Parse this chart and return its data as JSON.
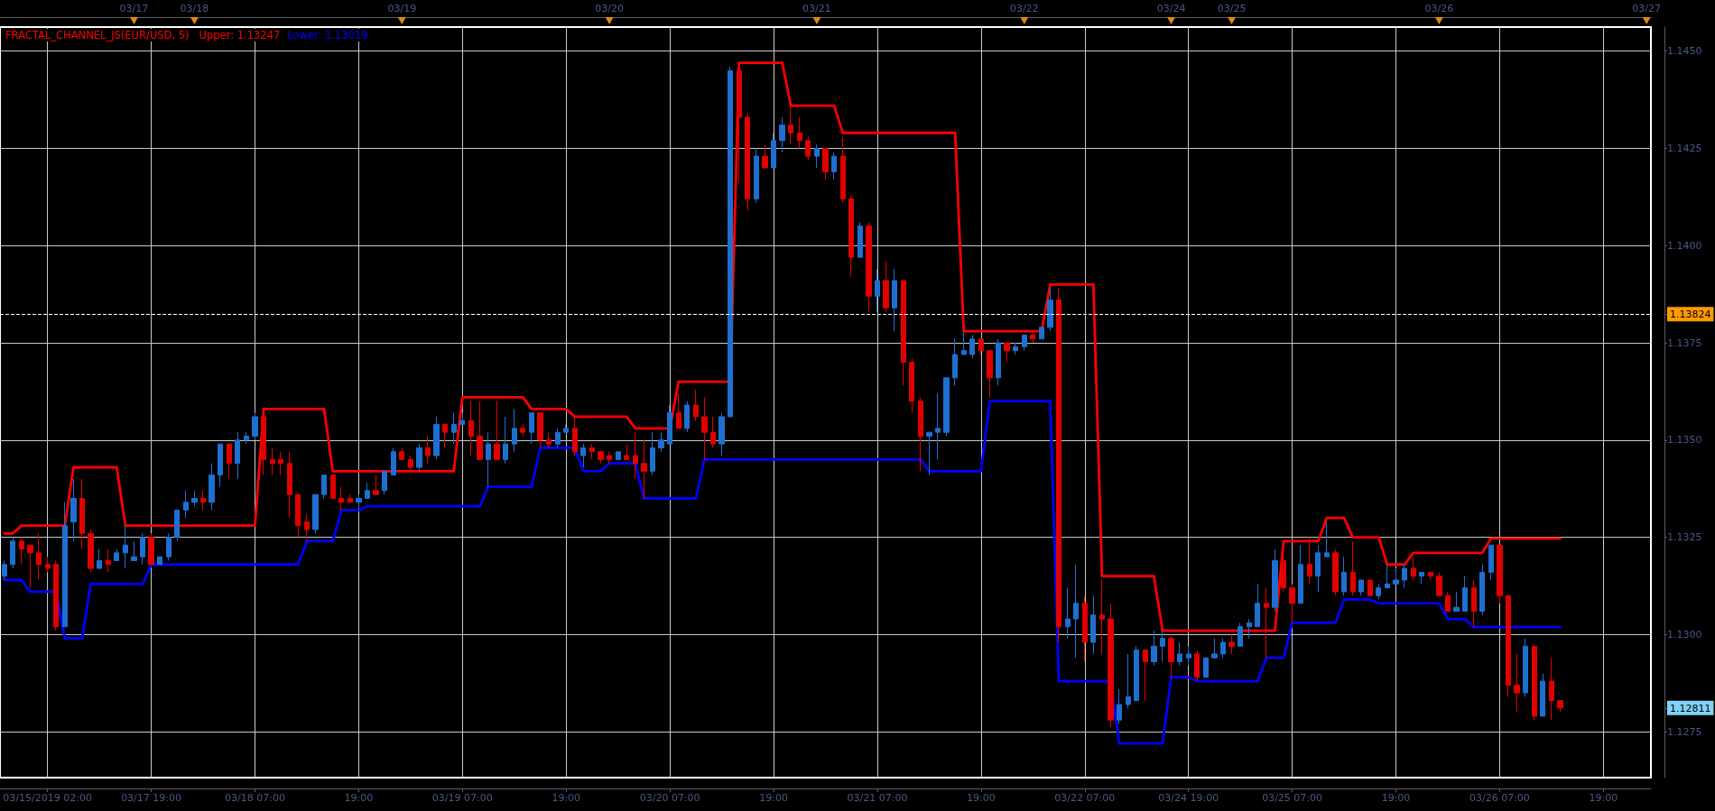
{
  "chart_data": [
    {
      "type": "other",
      "categories": [
        null,
        null,
        null,
        null,
        null,
        null,
        null,
        null,
        null,
        null,
        null,
        null,
        null,
        null,
        null,
        "03/17",
        null,
        null,
        null,
        null,
        null,
        null,
        "03/18",
        null,
        null,
        null,
        null,
        null,
        null,
        null,
        null,
        null,
        null,
        null,
        null,
        null,
        null,
        null,
        null,
        null,
        null,
        null,
        null,
        null,
        null,
        null,
        "03/19",
        null,
        null,
        null,
        null,
        null,
        null,
        null,
        null,
        null,
        null,
        null,
        null,
        null,
        null,
        null,
        null,
        null,
        null,
        null,
        null,
        null,
        null,
        null,
        "03/20",
        null,
        null,
        null,
        null,
        null,
        null,
        null,
        null,
        null,
        null,
        null,
        null,
        null,
        null,
        null,
        null,
        null,
        null,
        null,
        null,
        null,
        null,
        null,
        "03/21",
        null,
        null,
        null,
        null,
        null,
        null,
        null,
        null,
        null,
        null,
        null,
        null,
        null,
        null,
        null,
        null,
        null,
        null,
        null,
        null,
        null,
        null,
        null,
        "03/22",
        null,
        null,
        null,
        null,
        null,
        null,
        null,
        null,
        null,
        null,
        null,
        null,
        null,
        null,
        null,
        null,
        "03/24",
        null,
        null,
        null,
        null,
        null,
        null,
        "03/25",
        null,
        null,
        null,
        null,
        null,
        null,
        null,
        null,
        null,
        null,
        null,
        null,
        null,
        null,
        null,
        null,
        null,
        null,
        null,
        null,
        null,
        null,
        null,
        "03/26",
        null,
        null,
        null,
        null,
        null,
        null,
        null,
        null,
        null,
        null,
        null,
        null,
        null,
        null,
        null,
        null,
        null,
        null,
        null,
        null,
        null,
        null,
        null,
        "03/27"
      ]
    },
    {
      "type": "candlestick",
      "title": "FRACTAL_CHANNEL_JS(EUR/USD, 5)",
      "categories": [
        null,
        null,
        null,
        null,
        null,
        "03/15/2019 02:00",
        null,
        null,
        null,
        null,
        null,
        null,
        null,
        null,
        null,
        null,
        null,
        "03/17 19:00",
        null,
        null,
        null,
        null,
        null,
        null,
        null,
        null,
        null,
        null,
        null,
        "03/18 07:00",
        null,
        null,
        null,
        null,
        null,
        null,
        null,
        null,
        null,
        null,
        null,
        "19:00",
        null,
        null,
        null,
        null,
        null,
        null,
        null,
        null,
        null,
        null,
        null,
        "03/19 07:00",
        null,
        null,
        null,
        null,
        null,
        null,
        null,
        null,
        null,
        null,
        null,
        "19:00",
        null,
        null,
        null,
        null,
        null,
        null,
        null,
        null,
        null,
        null,
        null,
        "03/20 07:00",
        null,
        null,
        null,
        null,
        null,
        null,
        null,
        null,
        null,
        null,
        null,
        "19:00",
        null,
        null,
        null,
        null,
        null,
        null,
        null,
        null,
        null,
        null,
        null,
        "03/21 07:00",
        null,
        null,
        null,
        null,
        null,
        null,
        null,
        null,
        null,
        null,
        null,
        "19:00",
        null,
        null,
        null,
        null,
        null,
        null,
        null,
        null,
        null,
        null,
        null,
        "03/22 07:00",
        null,
        null,
        null,
        null,
        null,
        null,
        null,
        null,
        null,
        null,
        null,
        "03/24 19:00",
        null,
        null,
        null,
        null,
        null,
        null,
        null,
        null,
        null,
        null,
        null,
        "03/25 07:00",
        null,
        null,
        null,
        null,
        null,
        null,
        null,
        null,
        null,
        null,
        null,
        "19:00",
        null,
        null,
        null,
        null,
        null,
        null,
        null,
        null,
        null,
        null,
        null,
        "03/26 07:00",
        null,
        null,
        null,
        null,
        null,
        null,
        null,
        null,
        null,
        null,
        null,
        "19:00",
        null,
        null,
        null,
        null,
        null
      ],
      "ohlc": [
        [
          1.1315,
          1.1319,
          1.1314,
          1.1318
        ],
        [
          1.1318,
          1.1325,
          1.1317,
          1.1324
        ],
        [
          1.1324,
          1.1325,
          1.1318,
          1.1322
        ],
        [
          1.1323,
          1.1323,
          1.1312,
          1.1321
        ],
        [
          1.1321,
          1.1326,
          1.1314,
          1.1318
        ],
        [
          1.1318,
          1.132,
          1.1316,
          1.1317
        ],
        [
          1.1318,
          1.1319,
          1.1301,
          1.1302
        ],
        [
          1.1302,
          1.1334,
          1.1302,
          1.1328
        ],
        [
          1.1329,
          1.134,
          1.1324,
          1.1335
        ],
        [
          1.1335,
          1.134,
          1.1322,
          1.1326
        ],
        [
          1.1326,
          1.1327,
          1.1316,
          1.1317
        ],
        [
          1.1317,
          1.1322,
          1.1317,
          1.1319
        ],
        [
          1.1319,
          1.1322,
          1.1316,
          1.1318
        ],
        [
          1.1319,
          1.1322,
          1.1319,
          1.1321
        ],
        [
          1.1321,
          1.1328,
          1.1317,
          1.1323
        ],
        [
          1.1319,
          1.1324,
          1.1319,
          1.132
        ],
        [
          1.132,
          1.1326,
          1.1318,
          1.1325
        ],
        [
          1.1325,
          1.1326,
          1.1318,
          1.1318
        ],
        [
          1.1318,
          1.132,
          1.1318,
          1.132
        ],
        [
          1.132,
          1.1326,
          1.1319,
          1.1325
        ],
        [
          1.1325,
          1.1332,
          1.1324,
          1.1332
        ],
        [
          1.1332,
          1.1337,
          1.133,
          1.1334
        ],
        [
          1.1334,
          1.1337,
          1.1333,
          1.1335
        ],
        [
          1.1335,
          1.1337,
          1.1332,
          1.1334
        ],
        [
          1.1334,
          1.1344,
          1.1332,
          1.1341
        ],
        [
          1.1341,
          1.1349,
          1.1338,
          1.1349
        ],
        [
          1.1349,
          1.1349,
          1.134,
          1.1344
        ],
        [
          1.1344,
          1.1352,
          1.134,
          1.135
        ],
        [
          1.135,
          1.1352,
          1.1349,
          1.1351
        ],
        [
          1.1351,
          1.1357,
          1.135,
          1.1356
        ],
        [
          1.1356,
          1.1357,
          1.1341,
          1.1345
        ],
        [
          1.1345,
          1.1348,
          1.1341,
          1.1344
        ],
        [
          1.1345,
          1.1347,
          1.1341,
          1.1344
        ],
        [
          1.1344,
          1.1347,
          1.133,
          1.1336
        ],
        [
          1.1336,
          1.1336,
          1.1325,
          1.1328
        ],
        [
          1.1329,
          1.1331,
          1.1324,
          1.1327
        ],
        [
          1.1327,
          1.1336,
          1.1326,
          1.1336
        ],
        [
          1.1336,
          1.1341,
          1.1335,
          1.1341
        ],
        [
          1.1341,
          1.1341,
          1.1335,
          1.1335
        ],
        [
          1.1335,
          1.1338,
          1.1332,
          1.1334
        ],
        [
          1.1335,
          1.1336,
          1.1334,
          1.1334
        ],
        [
          1.1334,
          1.1336,
          1.1332,
          1.1335
        ],
        [
          1.1335,
          1.1339,
          1.1335,
          1.1337
        ],
        [
          1.1337,
          1.1341,
          1.1336,
          1.1336
        ],
        [
          1.1337,
          1.1342,
          1.1336,
          1.1342
        ],
        [
          1.1341,
          1.1348,
          1.1341,
          1.1347
        ],
        [
          1.1347,
          1.1348,
          1.1345,
          1.1345
        ],
        [
          1.1345,
          1.1346,
          1.1342,
          1.1343
        ],
        [
          1.1343,
          1.1349,
          1.1342,
          1.1348
        ],
        [
          1.1348,
          1.1351,
          1.1344,
          1.1346
        ],
        [
          1.1346,
          1.1356,
          1.1345,
          1.1354
        ],
        [
          1.1354,
          1.1354,
          1.1348,
          1.1352
        ],
        [
          1.1352,
          1.1357,
          1.1349,
          1.1354
        ],
        [
          1.1354,
          1.1357,
          1.1354,
          1.1355
        ],
        [
          1.1355,
          1.136,
          1.1346,
          1.1351
        ],
        [
          1.1351,
          1.136,
          1.1345,
          1.1345
        ],
        [
          1.1345,
          1.1352,
          1.1338,
          1.1349
        ],
        [
          1.1349,
          1.136,
          1.1345,
          1.1345
        ],
        [
          1.1345,
          1.1356,
          1.1344,
          1.1349
        ],
        [
          1.1349,
          1.1358,
          1.1347,
          1.1353
        ],
        [
          1.1353,
          1.1354,
          1.1351,
          1.1352
        ],
        [
          1.1352,
          1.1357,
          1.1349,
          1.1357
        ],
        [
          1.1357,
          1.1357,
          1.1348,
          1.135
        ],
        [
          1.135,
          1.1352,
          1.1348,
          1.1349
        ],
        [
          1.1349,
          1.1353,
          1.1348,
          1.1352
        ],
        [
          1.1352,
          1.1354,
          1.1352,
          1.1353
        ],
        [
          1.1353,
          1.1356,
          1.1346,
          1.1347
        ],
        [
          1.1346,
          1.1349,
          1.1343,
          1.1348
        ],
        [
          1.1348,
          1.1349,
          1.1345,
          1.1347
        ],
        [
          1.1347,
          1.1347,
          1.1344,
          1.1345
        ],
        [
          1.1346,
          1.1347,
          1.1344,
          1.1345
        ],
        [
          1.1345,
          1.1347,
          1.1345,
          1.1347
        ],
        [
          1.1346,
          1.1349,
          1.1345,
          1.1345
        ],
        [
          1.1346,
          1.1352,
          1.134,
          1.1344
        ],
        [
          1.1344,
          1.135,
          1.1335,
          1.1342
        ],
        [
          1.1342,
          1.1352,
          1.1341,
          1.1348
        ],
        [
          1.1348,
          1.1352,
          1.1347,
          1.135
        ],
        [
          1.1349,
          1.1359,
          1.1349,
          1.1357
        ],
        [
          1.1357,
          1.1362,
          1.1353,
          1.1353
        ],
        [
          1.1353,
          1.136,
          1.1352,
          1.1359
        ],
        [
          1.1359,
          1.1363,
          1.1355,
          1.1356
        ],
        [
          1.1356,
          1.1361,
          1.1345,
          1.1352
        ],
        [
          1.1352,
          1.1356,
          1.1348,
          1.1349
        ],
        [
          1.1349,
          1.1357,
          1.1346,
          1.1356
        ],
        [
          1.1356,
          1.1446,
          1.1356,
          1.1445
        ],
        [
          1.1445,
          1.1445,
          1.1416,
          1.1433
        ],
        [
          1.1433,
          1.1434,
          1.1409,
          1.1412
        ],
        [
          1.1412,
          1.1425,
          1.1411,
          1.1423
        ],
        [
          1.1423,
          1.1426,
          1.142,
          1.142
        ],
        [
          1.142,
          1.1429,
          1.142,
          1.1427
        ],
        [
          1.1427,
          1.1433,
          1.1424,
          1.1431
        ],
        [
          1.1431,
          1.1436,
          1.1426,
          1.1429
        ],
        [
          1.1429,
          1.1433,
          1.1425,
          1.1427
        ],
        [
          1.1427,
          1.1428,
          1.1422,
          1.1423
        ],
        [
          1.1423,
          1.1426,
          1.142,
          1.1425
        ],
        [
          1.1425,
          1.1425,
          1.1417,
          1.1419
        ],
        [
          1.1419,
          1.1424,
          1.1417,
          1.1423
        ],
        [
          1.1423,
          1.1428,
          1.1411,
          1.1412
        ],
        [
          1.1412,
          1.1413,
          1.1392,
          1.1397
        ],
        [
          1.1397,
          1.1406,
          1.1397,
          1.1405
        ],
        [
          1.1405,
          1.1406,
          1.1383,
          1.1387
        ],
        [
          1.1387,
          1.1394,
          1.1383,
          1.1391
        ],
        [
          1.1391,
          1.1396,
          1.1383,
          1.1384
        ],
        [
          1.1384,
          1.1394,
          1.1378,
          1.1391
        ],
        [
          1.1391,
          1.1391,
          1.1364,
          1.137
        ],
        [
          1.137,
          1.1371,
          1.1357,
          1.136
        ],
        [
          1.136,
          1.1361,
          1.1342,
          1.1351
        ],
        [
          1.1351,
          1.1352,
          1.1341,
          1.1352
        ],
        [
          1.1352,
          1.1362,
          1.1345,
          1.1353
        ],
        [
          1.1352,
          1.1366,
          1.1351,
          1.1366
        ],
        [
          1.1366,
          1.1376,
          1.1364,
          1.1372
        ],
        [
          1.1372,
          1.1378,
          1.1372,
          1.1373
        ],
        [
          1.1372,
          1.1377,
          1.1371,
          1.1376
        ],
        [
          1.1376,
          1.1376,
          1.1372,
          1.1373
        ],
        [
          1.1373,
          1.1373,
          1.1361,
          1.1366
        ],
        [
          1.1366,
          1.1376,
          1.1364,
          1.1375
        ],
        [
          1.1375,
          1.1375,
          1.137,
          1.1373
        ],
        [
          1.1373,
          1.1375,
          1.1372,
          1.1374
        ],
        [
          1.1374,
          1.1377,
          1.1373,
          1.1377
        ],
        [
          1.1377,
          1.1378,
          1.1375,
          1.1376
        ],
        [
          1.1376,
          1.1379,
          1.1376,
          1.1379
        ],
        [
          1.1379,
          1.1389,
          1.1378,
          1.1386
        ],
        [
          1.1386,
          1.1389,
          1.1298,
          1.1302
        ],
        [
          1.1302,
          1.1312,
          1.1299,
          1.1304
        ],
        [
          1.1304,
          1.1318,
          1.1294,
          1.1308
        ],
        [
          1.1308,
          1.131,
          1.1293,
          1.1298
        ],
        [
          1.1298,
          1.131,
          1.1295,
          1.1305
        ],
        [
          1.1305,
          1.1314,
          1.1295,
          1.1304
        ],
        [
          1.1304,
          1.1308,
          1.1276,
          1.1278
        ],
        [
          1.1278,
          1.1286,
          1.1277,
          1.1282
        ],
        [
          1.1282,
          1.1295,
          1.1281,
          1.1284
        ],
        [
          1.1283,
          1.1297,
          1.1283,
          1.1296
        ],
        [
          1.1296,
          1.1296,
          1.1283,
          1.1293
        ],
        [
          1.1293,
          1.1301,
          1.1292,
          1.1297
        ],
        [
          1.1297,
          1.1301,
          1.1293,
          1.1299
        ],
        [
          1.1299,
          1.13,
          1.1289,
          1.1293
        ],
        [
          1.1293,
          1.1298,
          1.1292,
          1.1295
        ],
        [
          1.1294,
          1.1297,
          1.1292,
          1.1295
        ],
        [
          1.1295,
          1.1296,
          1.1288,
          1.1289
        ],
        [
          1.1289,
          1.1294,
          1.1289,
          1.1294
        ],
        [
          1.1294,
          1.1299,
          1.1294,
          1.1295
        ],
        [
          1.1295,
          1.1299,
          1.1294,
          1.1298
        ],
        [
          1.1298,
          1.13,
          1.1295,
          1.1297
        ],
        [
          1.1297,
          1.1303,
          1.1297,
          1.1302
        ],
        [
          1.1302,
          1.1304,
          1.1299,
          1.1303
        ],
        [
          1.1302,
          1.1313,
          1.1302,
          1.1308
        ],
        [
          1.1308,
          1.1312,
          1.1294,
          1.1307
        ],
        [
          1.1307,
          1.1322,
          1.1306,
          1.1319
        ],
        [
          1.1319,
          1.1321,
          1.1311,
          1.1312
        ],
        [
          1.1312,
          1.1313,
          1.1303,
          1.1308
        ],
        [
          1.1308,
          1.1323,
          1.1308,
          1.1318
        ],
        [
          1.1318,
          1.1325,
          1.1313,
          1.1315
        ],
        [
          1.1315,
          1.1323,
          1.1311,
          1.1321
        ],
        [
          1.132,
          1.1329,
          1.132,
          1.1321
        ],
        [
          1.1321,
          1.1322,
          1.131,
          1.1311
        ],
        [
          1.1311,
          1.132,
          1.131,
          1.1316
        ],
        [
          1.1316,
          1.1324,
          1.131,
          1.1311
        ],
        [
          1.1311,
          1.1314,
          1.131,
          1.1314
        ],
        [
          1.1314,
          1.1314,
          1.131,
          1.131
        ],
        [
          1.131,
          1.1313,
          1.1309,
          1.1312
        ],
        [
          1.1312,
          1.1318,
          1.1312,
          1.1313
        ],
        [
          1.1313,
          1.1317,
          1.1313,
          1.1314
        ],
        [
          1.1314,
          1.1318,
          1.1312,
          1.1317
        ],
        [
          1.1317,
          1.132,
          1.1314,
          1.1315
        ],
        [
          1.1315,
          1.1316,
          1.1313,
          1.1316
        ],
        [
          1.1316,
          1.1316,
          1.1314,
          1.1315
        ],
        [
          1.1315,
          1.1316,
          1.131,
          1.131
        ],
        [
          1.131,
          1.1311,
          1.1306,
          1.1306
        ],
        [
          1.1306,
          1.1311,
          1.1306,
          1.1307
        ],
        [
          1.1306,
          1.1315,
          1.1306,
          1.1312
        ],
        [
          1.1312,
          1.1314,
          1.1302,
          1.1306
        ],
        [
          1.1306,
          1.1318,
          1.1305,
          1.1316
        ],
        [
          1.1316,
          1.1323,
          1.1314,
          1.1323
        ],
        [
          1.1323,
          1.1323,
          1.1308,
          1.131
        ],
        [
          1.131,
          1.131,
          1.1284,
          1.1287
        ],
        [
          1.1287,
          1.1295,
          1.128,
          1.1285
        ],
        [
          1.1285,
          1.1299,
          1.1284,
          1.1297
        ],
        [
          1.1297,
          1.1297,
          1.1278,
          1.1279
        ],
        [
          1.1279,
          1.129,
          1.1279,
          1.1288
        ],
        [
          1.1288,
          1.1294,
          1.1278,
          1.1283
        ],
        [
          1.1283,
          1.1283,
          1.128,
          1.12811
        ],
        null,
        null,
        null,
        null,
        null,
        null,
        null,
        null,
        null,
        null
      ],
      "colors": [
        "#1f6fd1",
        "#1f6fd1",
        "#e10000",
        "#e10000",
        "#e10000",
        "#e10000",
        "#e10000",
        "#1f6fd1",
        "#1f6fd1",
        "#e10000",
        "#e10000",
        "#1f6fd1",
        "#e10000",
        "#1f6fd1",
        "#1f6fd1",
        "#1f6fd1",
        "#1f6fd1",
        "#e10000",
        "#1f6fd1",
        "#1f6fd1",
        "#1f6fd1",
        "#1f6fd1",
        "#1f6fd1",
        "#e10000",
        "#1f6fd1",
        "#1f6fd1",
        "#e10000",
        "#1f6fd1",
        "#1f6fd1",
        "#1f6fd1",
        "#e10000",
        "#e10000",
        "#e10000",
        "#e10000",
        "#e10000",
        "#e10000",
        "#1f6fd1",
        "#1f6fd1",
        "#e10000",
        "#e10000",
        "#e10000",
        "#1f6fd1",
        "#1f6fd1",
        "#e10000",
        "#1f6fd1",
        "#1f6fd1",
        "#e10000",
        "#e10000",
        "#1f6fd1",
        "#e10000",
        "#1f6fd1",
        "#e10000",
        "#1f6fd1",
        "#1f6fd1",
        "#e10000",
        "#e10000",
        "#1f6fd1",
        "#e10000",
        "#1f6fd1",
        "#1f6fd1",
        "#e10000",
        "#1f6fd1",
        "#e10000",
        "#e10000",
        "#1f6fd1",
        "#1f6fd1",
        "#e10000",
        "#1f6fd1",
        "#e10000",
        "#e10000",
        "#e10000",
        "#1f6fd1",
        "#e10000",
        "#e10000",
        "#e10000",
        "#1f6fd1",
        "#1f6fd1",
        "#1f6fd1",
        "#e10000",
        "#1f6fd1",
        "#e10000",
        "#e10000",
        "#e10000",
        "#1f6fd1",
        "#1f6fd1",
        "#e10000",
        "#e10000",
        "#1f6fd1",
        "#e10000",
        "#1f6fd1",
        "#1f6fd1",
        "#e10000",
        "#e10000",
        "#e10000",
        "#1f6fd1",
        "#e10000",
        "#1f6fd1",
        "#e10000",
        "#e10000",
        "#1f6fd1",
        "#e10000",
        "#1f6fd1",
        "#e10000",
        "#1f6fd1",
        "#e10000",
        "#e10000",
        "#e10000",
        "#1f6fd1",
        "#1f6fd1",
        "#1f6fd1",
        "#1f6fd1",
        "#1f6fd1",
        "#1f6fd1",
        "#e10000",
        "#e10000",
        "#1f6fd1",
        "#e10000",
        "#1f6fd1",
        "#1f6fd1",
        "#e10000",
        "#1f6fd1",
        "#1f6fd1",
        "#e10000",
        "#1f6fd1",
        "#1f6fd1",
        "#e10000",
        "#1f6fd1",
        "#e10000",
        "#e10000",
        "#1f6fd1",
        "#1f6fd1",
        "#1f6fd1",
        "#e10000",
        "#1f6fd1",
        "#1f6fd1",
        "#e10000",
        "#1f6fd1",
        "#1f6fd1",
        "#e10000",
        "#1f6fd1",
        "#1f6fd1",
        "#1f6fd1",
        "#e10000",
        "#1f6fd1",
        "#1f6fd1",
        "#1f6fd1",
        "#e10000",
        "#1f6fd1",
        "#e10000",
        "#e10000",
        "#1f6fd1",
        "#e10000",
        "#1f6fd1",
        "#1f6fd1",
        "#e10000",
        "#1f6fd1",
        "#e10000",
        "#1f6fd1",
        "#e10000",
        "#1f6fd1",
        "#1f6fd1",
        "#1f6fd1",
        "#1f6fd1",
        "#e10000",
        "#1f6fd1",
        "#e10000",
        "#e10000",
        "#e10000",
        "#1f6fd1",
        "#1f6fd1",
        "#e10000",
        "#1f6fd1",
        "#1f6fd1",
        "#e10000",
        "#e10000",
        "#e10000",
        "#1f6fd1",
        "#e10000",
        "#1f6fd1",
        "#e10000",
        "#e10000",
        null,
        null,
        null,
        null,
        null,
        null,
        null,
        null,
        null,
        null
      ],
      "series": [
        {
          "name": "Upper: 1.13247",
          "type": "line",
          "color": "#ff0000",
          "values": [
            1.1326,
            1.1326,
            1.1328,
            1.1328,
            1.1328,
            1.1328,
            1.1328,
            1.1328,
            1.1343,
            1.1343,
            1.1343,
            1.1343,
            1.1343,
            1.1343,
            1.1328,
            1.1328,
            1.1328,
            1.1328,
            1.1328,
            1.1328,
            1.1328,
            1.1328,
            1.1328,
            1.1328,
            1.1328,
            1.1328,
            1.1328,
            1.1328,
            1.1328,
            1.1328,
            1.1358,
            1.1358,
            1.1358,
            1.1358,
            1.1358,
            1.1358,
            1.1358,
            1.1358,
            1.1342,
            1.1342,
            1.1342,
            1.1342,
            1.1342,
            1.1342,
            1.1342,
            1.1342,
            1.1342,
            1.1342,
            1.1342,
            1.1342,
            1.1342,
            1.1342,
            1.1342,
            1.1361,
            1.1361,
            1.1361,
            1.1361,
            1.1361,
            1.1361,
            1.1361,
            1.1361,
            1.1358,
            1.1358,
            1.1358,
            1.1358,
            1.1358,
            1.1356,
            1.1356,
            1.1356,
            1.1356,
            1.1356,
            1.1356,
            1.1356,
            1.1353,
            1.1353,
            1.1353,
            1.1353,
            1.1353,
            1.1365,
            1.1365,
            1.1365,
            1.1365,
            1.1365,
            1.1365,
            1.1365,
            1.1447,
            1.1447,
            1.1447,
            1.1447,
            1.1447,
            1.1447,
            1.1436,
            1.1436,
            1.1436,
            1.1436,
            1.1436,
            1.1436,
            1.1429,
            1.1429,
            1.1429,
            1.1429,
            1.1429,
            1.1429,
            1.1429,
            1.1429,
            1.1429,
            1.1429,
            1.1429,
            1.1429,
            1.1429,
            1.1429,
            1.1378,
            1.1378,
            1.1378,
            1.1378,
            1.1378,
            1.1378,
            1.1378,
            1.1378,
            1.1378,
            1.1378,
            1.139,
            1.139,
            1.139,
            1.139,
            1.139,
            1.139,
            1.1315,
            1.1315,
            1.1315,
            1.1315,
            1.1315,
            1.1315,
            1.1315,
            1.1301,
            1.1301,
            1.1301,
            1.1301,
            1.1301,
            1.1301,
            1.1301,
            1.1301,
            1.1301,
            1.1301,
            1.1301,
            1.1301,
            1.1301,
            1.1301,
            1.1324,
            1.1324,
            1.1324,
            1.1324,
            1.1324,
            1.133,
            1.133,
            1.133,
            1.1325,
            1.1325,
            1.1325,
            1.1325,
            1.1318,
            1.1318,
            1.1318,
            1.1321,
            1.1321,
            1.1321,
            1.1321,
            1.1321,
            1.1321,
            1.1321,
            1.1321,
            1.1321,
            1.13247,
            1.13247,
            1.13247,
            1.13247,
            1.13247,
            1.13247,
            1.13247,
            1.13247,
            1.13247,
            null,
            null,
            null,
            null,
            null,
            null,
            null,
            null,
            null,
            null
          ]
        },
        {
          "name": "Lower: 1.13019",
          "type": "line",
          "color": "#0000ff",
          "values": [
            1.1314,
            1.1314,
            1.1314,
            1.1311,
            1.1311,
            1.1311,
            1.1311,
            1.1299,
            1.1299,
            1.1299,
            1.1313,
            1.1313,
            1.1313,
            1.1313,
            1.1313,
            1.1313,
            1.1313,
            1.1318,
            1.1318,
            1.1318,
            1.1318,
            1.1318,
            1.1318,
            1.1318,
            1.1318,
            1.1318,
            1.1318,
            1.1318,
            1.1318,
            1.1318,
            1.1318,
            1.1318,
            1.1318,
            1.1318,
            1.1318,
            1.1324,
            1.1324,
            1.1324,
            1.1324,
            1.1332,
            1.1332,
            1.1332,
            1.1333,
            1.1333,
            1.1333,
            1.1333,
            1.1333,
            1.1333,
            1.1333,
            1.1333,
            1.1333,
            1.1333,
            1.1333,
            1.1333,
            1.1333,
            1.1333,
            1.1338,
            1.1338,
            1.1338,
            1.1338,
            1.1338,
            1.1338,
            1.1348,
            1.1348,
            1.1348,
            1.1348,
            1.1348,
            1.1342,
            1.1342,
            1.1342,
            1.1344,
            1.1344,
            1.1344,
            1.1344,
            1.1335,
            1.1335,
            1.1335,
            1.1335,
            1.1335,
            1.1335,
            1.1335,
            1.1345,
            1.1345,
            1.1345,
            1.1345,
            1.1345,
            1.1345,
            1.1345,
            1.1345,
            1.1345,
            1.1345,
            1.1345,
            1.1345,
            1.1345,
            1.1345,
            1.1345,
            1.1345,
            1.1345,
            1.1345,
            1.1345,
            1.1345,
            1.1345,
            1.1345,
            1.1345,
            1.1345,
            1.1345,
            1.1345,
            1.1342,
            1.1342,
            1.1342,
            1.1342,
            1.1342,
            1.1342,
            1.1342,
            1.136,
            1.136,
            1.136,
            1.136,
            1.136,
            1.136,
            1.136,
            1.136,
            1.1288,
            1.1288,
            1.1288,
            1.1288,
            1.1288,
            1.1288,
            1.1288,
            1.1272,
            1.1272,
            1.1272,
            1.1272,
            1.1272,
            1.1272,
            1.1289,
            1.1289,
            1.1289,
            1.1288,
            1.1288,
            1.1288,
            1.1288,
            1.1288,
            1.1288,
            1.1288,
            1.1288,
            1.1294,
            1.1294,
            1.1294,
            1.1303,
            1.1303,
            1.1303,
            1.1303,
            1.1303,
            1.1303,
            1.1309,
            1.1309,
            1.1309,
            1.1309,
            1.1308,
            1.1308,
            1.1308,
            1.1308,
            1.1308,
            1.1308,
            1.1308,
            1.1308,
            1.1304,
            1.1304,
            1.1304,
            1.13019,
            1.13019,
            1.13019,
            1.13019,
            1.13019,
            1.13019,
            1.13019,
            1.13019,
            1.13019,
            1.13019,
            1.13019,
            null,
            null,
            null,
            null,
            null,
            null,
            null,
            null,
            null,
            null
          ]
        }
      ],
      "ylim": [
        1.12632,
        1.14562
      ],
      "yticks": [
        1.1275,
        1.12811,
        {
          "value": 1.13,
          "label": "1.1300"
        },
        1.1325,
        {
          "value": 1.135,
          "label": "1.1350"
        },
        1.1375,
        1.13824,
        {
          "value": 1.14,
          "label": "1.1400"
        },
        1.1425,
        {
          "value": 1.145,
          "label": "1.1450"
        }
      ],
      "ref_lines": [
        {
          "axis": "y",
          "value": 1.13824,
          "color": "#ffffff",
          "line_style": "dashed"
        }
      ],
      "grid": true,
      "legend": "top left",
      "marker": "none",
      "line_style": "solid"
    }
  ]
}
